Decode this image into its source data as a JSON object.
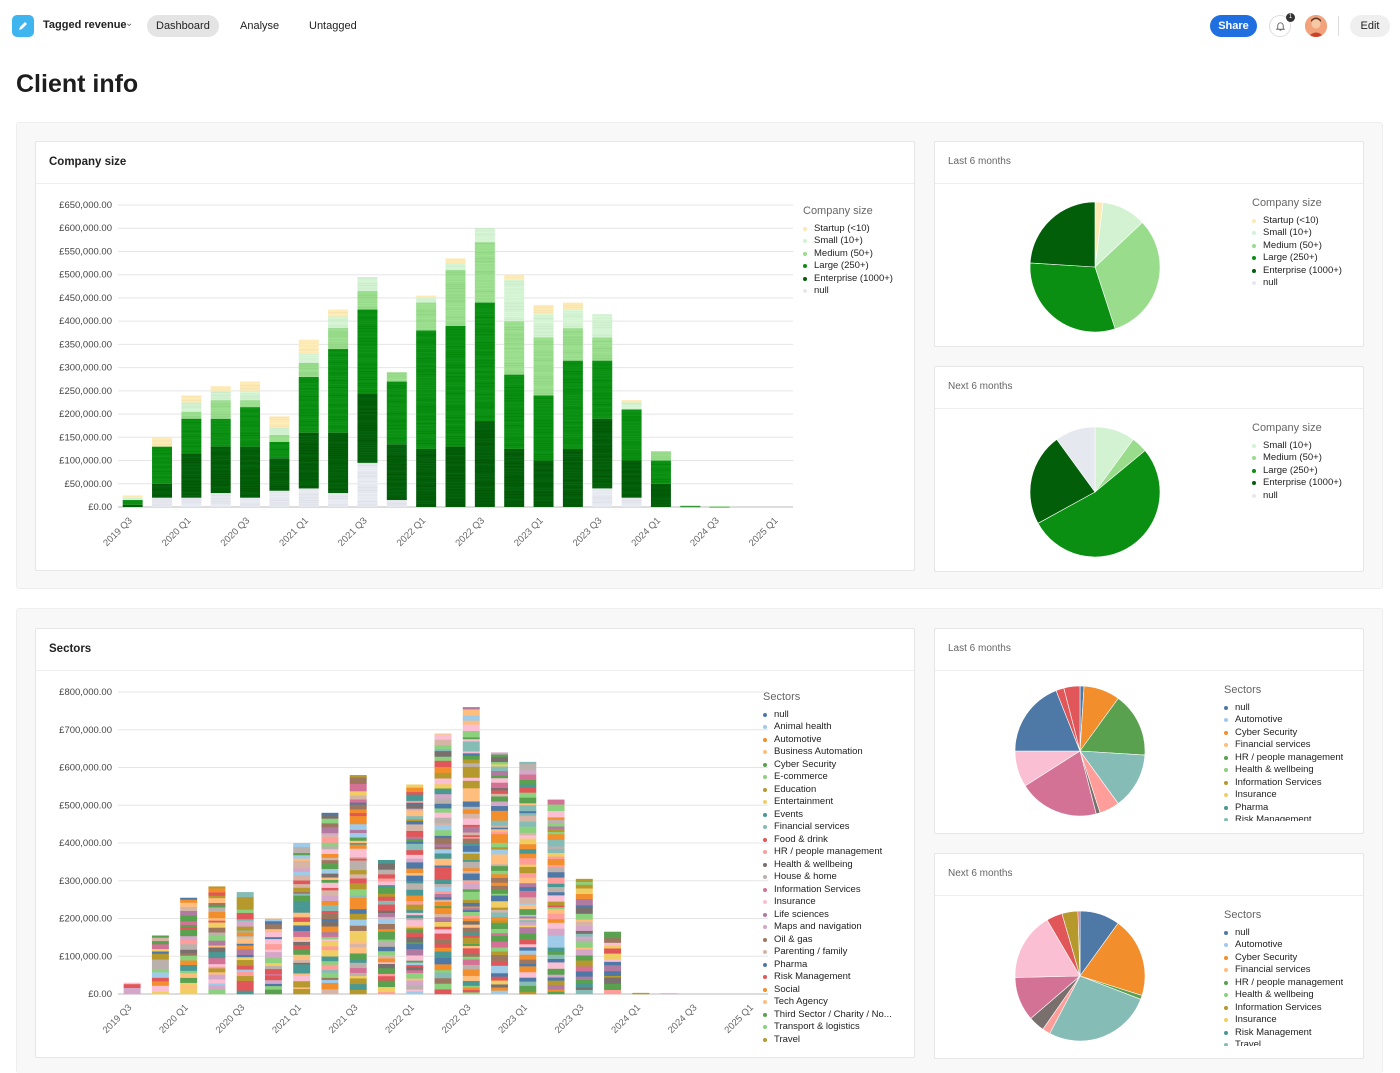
{
  "app": {
    "name": "Tagged revenue",
    "tabs": [
      "Dashboard",
      "Analyse",
      "Untagged"
    ],
    "active_tab": "Dashboard",
    "share_label": "Share",
    "edit_label": "Edit",
    "notification_count": "1"
  },
  "page": {
    "title": "Client info"
  },
  "colors": {
    "accent": "#1f6fe0",
    "logo": "#3fb5f0"
  },
  "company_size": {
    "card_title": "Company size",
    "legend_title": "Company size",
    "categories": [
      {
        "name": "Startup (<10)",
        "color": "#fde9b4"
      },
      {
        "name": "Small (10+)",
        "color": "#d2f2d2"
      },
      {
        "name": "Medium (50+)",
        "color": "#98dc8c"
      },
      {
        "name": "Large (250+)",
        "color": "#0a8f12"
      },
      {
        "name": "Enterprise (1000+)",
        "color": "#035e0a"
      },
      {
        "name": "null",
        "color": "#e6e8ef"
      }
    ],
    "last6_title": "Last 6 months",
    "next6_title": "Next 6 months",
    "next6_legend": [
      "Small (10+)",
      "Medium (50+)",
      "Large (250+)",
      "Enterprise (1000+)",
      "null"
    ]
  },
  "sectors": {
    "card_title": "Sectors",
    "legend_title": "Sectors",
    "items": [
      {
        "name": "null",
        "color": "#4e79a7"
      },
      {
        "name": "Animal health",
        "color": "#a0cbe8"
      },
      {
        "name": "Automotive",
        "color": "#f28e2b"
      },
      {
        "name": "Business Automation",
        "color": "#ffbe7d"
      },
      {
        "name": "Cyber Security",
        "color": "#59a14f"
      },
      {
        "name": "E-commerce",
        "color": "#8cd17d"
      },
      {
        "name": "Education",
        "color": "#b6992d"
      },
      {
        "name": "Entertainment",
        "color": "#f1ce63"
      },
      {
        "name": "Events",
        "color": "#499894"
      },
      {
        "name": "Financial services",
        "color": "#86bcb6"
      },
      {
        "name": "Food & drink",
        "color": "#e15759"
      },
      {
        "name": "HR / people management",
        "color": "#ff9d9a"
      },
      {
        "name": "Health & wellbeing",
        "color": "#79706e"
      },
      {
        "name": "House & home",
        "color": "#bab0ac"
      },
      {
        "name": "Information Services",
        "color": "#d37295"
      },
      {
        "name": "Insurance",
        "color": "#fabfd2"
      },
      {
        "name": "Life sciences",
        "color": "#b07aa1"
      },
      {
        "name": "Maps and navigation",
        "color": "#d4a6c8"
      },
      {
        "name": "Oil & gas",
        "color": "#9d7660"
      },
      {
        "name": "Parenting / family",
        "color": "#d7b5a6"
      },
      {
        "name": "Pharma",
        "color": "#4e79a7"
      },
      {
        "name": "Risk Management",
        "color": "#e15759"
      },
      {
        "name": "Social",
        "color": "#f28e2b"
      },
      {
        "name": "Tech Agency",
        "color": "#ffbe7d"
      },
      {
        "name": "Third Sector / Charity / No...",
        "color": "#59a14f"
      },
      {
        "name": "Transport & logistics",
        "color": "#8cd17d"
      },
      {
        "name": "Travel",
        "color": "#b6992d"
      }
    ],
    "last6_title": "Last 6 months",
    "next6_title": "Next 6 months",
    "last6_legend": [
      {
        "name": "null",
        "color": "#4e79a7"
      },
      {
        "name": "Automotive",
        "color": "#a0cbe8"
      },
      {
        "name": "Cyber Security",
        "color": "#f28e2b"
      },
      {
        "name": "Financial services",
        "color": "#ffbe7d"
      },
      {
        "name": "HR / people management",
        "color": "#59a14f"
      },
      {
        "name": "Health & wellbeing",
        "color": "#8cd17d"
      },
      {
        "name": "Information Services",
        "color": "#b6992d"
      },
      {
        "name": "Insurance",
        "color": "#f1ce63"
      },
      {
        "name": "Pharma",
        "color": "#499894"
      },
      {
        "name": "Risk Management",
        "color": "#86bcb6"
      }
    ],
    "next6_legend": [
      {
        "name": "null",
        "color": "#4e79a7"
      },
      {
        "name": "Automotive",
        "color": "#a0cbe8"
      },
      {
        "name": "Cyber Security",
        "color": "#f28e2b"
      },
      {
        "name": "Financial services",
        "color": "#ffbe7d"
      },
      {
        "name": "HR / people management",
        "color": "#59a14f"
      },
      {
        "name": "Health & wellbeing",
        "color": "#8cd17d"
      },
      {
        "name": "Information Services",
        "color": "#b6992d"
      },
      {
        "name": "Insurance",
        "color": "#f1ce63"
      },
      {
        "name": "Risk Management",
        "color": "#499894"
      },
      {
        "name": "Travel",
        "color": "#86bcb6"
      }
    ]
  },
  "chart_data": [
    {
      "id": "company_size_bar",
      "type": "bar",
      "stacked": true,
      "ylim": [
        0,
        650000
      ],
      "yticks": [
        "£0.00",
        "£50,000.00",
        "£100,000.00",
        "£150,000.00",
        "£200,000.00",
        "£250,000.00",
        "£300,000.00",
        "£350,000.00",
        "£400,000.00",
        "£450,000.00",
        "£500,000.00",
        "£550,000.00",
        "£600,000.00",
        "£650,000.00"
      ],
      "xticks": [
        "2019 Q3",
        "2020 Q1",
        "2020 Q3",
        "2021 Q1",
        "2021 Q3",
        "2022 Q1",
        "2022 Q3",
        "2023 Q1",
        "2023 Q3",
        "2024 Q1",
        "2024 Q3",
        "2025 Q1"
      ],
      "categories": [
        "2019 Q3",
        "2019 Q4",
        "2020 Q1",
        "2020 Q2",
        "2020 Q3",
        "2020 Q4",
        "2021 Q1",
        "2021 Q2",
        "2021 Q3",
        "2021 Q4",
        "2022 Q1",
        "2022 Q2",
        "2022 Q3",
        "2022 Q4",
        "2023 Q1",
        "2023 Q2",
        "2023 Q3",
        "2023 Q4",
        "2024 Q1",
        "2024 Q2",
        "2024 Q3",
        "2024 Q4",
        "2025 Q1"
      ],
      "series": [
        {
          "name": "null",
          "values": [
            0,
            20000,
            20000,
            30000,
            20000,
            35000,
            40000,
            30000,
            95000,
            15000,
            0,
            0,
            0,
            0,
            0,
            0,
            40000,
            20000,
            0,
            0,
            0,
            0,
            0
          ]
        },
        {
          "name": "Enterprise (1000+)",
          "values": [
            5000,
            30000,
            95000,
            100000,
            110000,
            70000,
            120000,
            130000,
            150000,
            120000,
            125000,
            130000,
            185000,
            125000,
            100000,
            125000,
            150000,
            80000,
            50000,
            1000,
            500,
            0,
            0
          ]
        },
        {
          "name": "Large (250+)",
          "values": [
            10000,
            80000,
            75000,
            60000,
            85000,
            35000,
            120000,
            180000,
            180000,
            135000,
            255000,
            260000,
            255000,
            160000,
            140000,
            190000,
            125000,
            110000,
            50000,
            1000,
            500,
            0,
            0
          ]
        },
        {
          "name": "Medium (50+)",
          "values": [
            0,
            0,
            15000,
            40000,
            15000,
            15000,
            30000,
            45000,
            40000,
            20000,
            60000,
            120000,
            130000,
            115000,
            125000,
            70000,
            50000,
            0,
            20000,
            1000,
            500,
            0,
            0
          ]
        },
        {
          "name": "Small (10+)",
          "values": [
            5000,
            0,
            20000,
            20000,
            20000,
            15000,
            20000,
            25000,
            30000,
            0,
            10000,
            15000,
            30000,
            90000,
            50000,
            40000,
            50000,
            15000,
            0,
            0,
            0,
            0,
            0
          ]
        },
        {
          "name": "Startup (<10)",
          "values": [
            5000,
            20000,
            15000,
            10000,
            20000,
            25000,
            30000,
            15000,
            0,
            0,
            5000,
            10000,
            0,
            10000,
            20000,
            15000,
            0,
            5000,
            0,
            0,
            0,
            0,
            0
          ]
        }
      ]
    },
    {
      "id": "company_size_last6",
      "type": "pie",
      "labels": [
        "Startup (<10)",
        "Small (10+)",
        "Medium (50+)",
        "Large (250+)",
        "Enterprise (1000+)",
        "null"
      ],
      "values": [
        2,
        11,
        32,
        31,
        24,
        0
      ]
    },
    {
      "id": "company_size_next6",
      "type": "pie",
      "labels": [
        "Small (10+)",
        "Medium (50+)",
        "Large (250+)",
        "Enterprise (1000+)",
        "null"
      ],
      "values": [
        10,
        4,
        53,
        23,
        10
      ]
    },
    {
      "id": "sectors_bar",
      "type": "bar",
      "stacked": true,
      "ylim": [
        0,
        800000
      ],
      "yticks": [
        "£0.00",
        "£100,000.00",
        "£200,000.00",
        "£300,000.00",
        "£400,000.00",
        "£500,000.00",
        "£600,000.00",
        "£700,000.00",
        "£800,000.00"
      ],
      "xticks": [
        "2019 Q3",
        "2020 Q1",
        "2020 Q3",
        "2021 Q1",
        "2021 Q3",
        "2022 Q1",
        "2022 Q3",
        "2023 Q1",
        "2023 Q3",
        "2024 Q1",
        "2024 Q3",
        "2025 Q1"
      ],
      "categories": [
        "2019 Q3",
        "2019 Q4",
        "2020 Q1",
        "2020 Q2",
        "2020 Q3",
        "2020 Q4",
        "2021 Q1",
        "2021 Q2",
        "2021 Q3",
        "2021 Q4",
        "2022 Q1",
        "2022 Q2",
        "2022 Q3",
        "2022 Q4",
        "2023 Q1",
        "2023 Q2",
        "2023 Q3",
        "2023 Q4",
        "2024 Q1",
        "2024 Q2",
        "2024 Q3",
        "2024 Q4",
        "2025 Q1"
      ],
      "totals": [
        30000,
        155000,
        255000,
        285000,
        270000,
        200000,
        400000,
        480000,
        580000,
        355000,
        555000,
        690000,
        760000,
        640000,
        615000,
        515000,
        305000,
        165000,
        3000,
        2000,
        0,
        0,
        0
      ]
    },
    {
      "id": "sectors_last6",
      "type": "pie",
      "labels": [
        "null",
        "Automotive",
        "Cyber Security",
        "Financial services",
        "HR / people management",
        "Health & wellbeing",
        "Information Services",
        "Insurance",
        "Pharma",
        "Risk Management",
        "Food & drink"
      ],
      "values": [
        1,
        9,
        16,
        14,
        5,
        1,
        20,
        9,
        19,
        2,
        4
      ]
    },
    {
      "id": "sectors_next6",
      "type": "pie",
      "labels": [
        "null",
        "Automotive",
        "Cyber Security",
        "Financial services",
        "HR / people management",
        "Health & wellbeing",
        "Information Services",
        "Insurance",
        "Risk Management",
        "Travel",
        "Food & drink"
      ],
      "values": [
        10,
        20,
        1,
        27,
        2,
        4,
        11,
        17,
        4,
        4,
        0.5
      ]
    }
  ]
}
